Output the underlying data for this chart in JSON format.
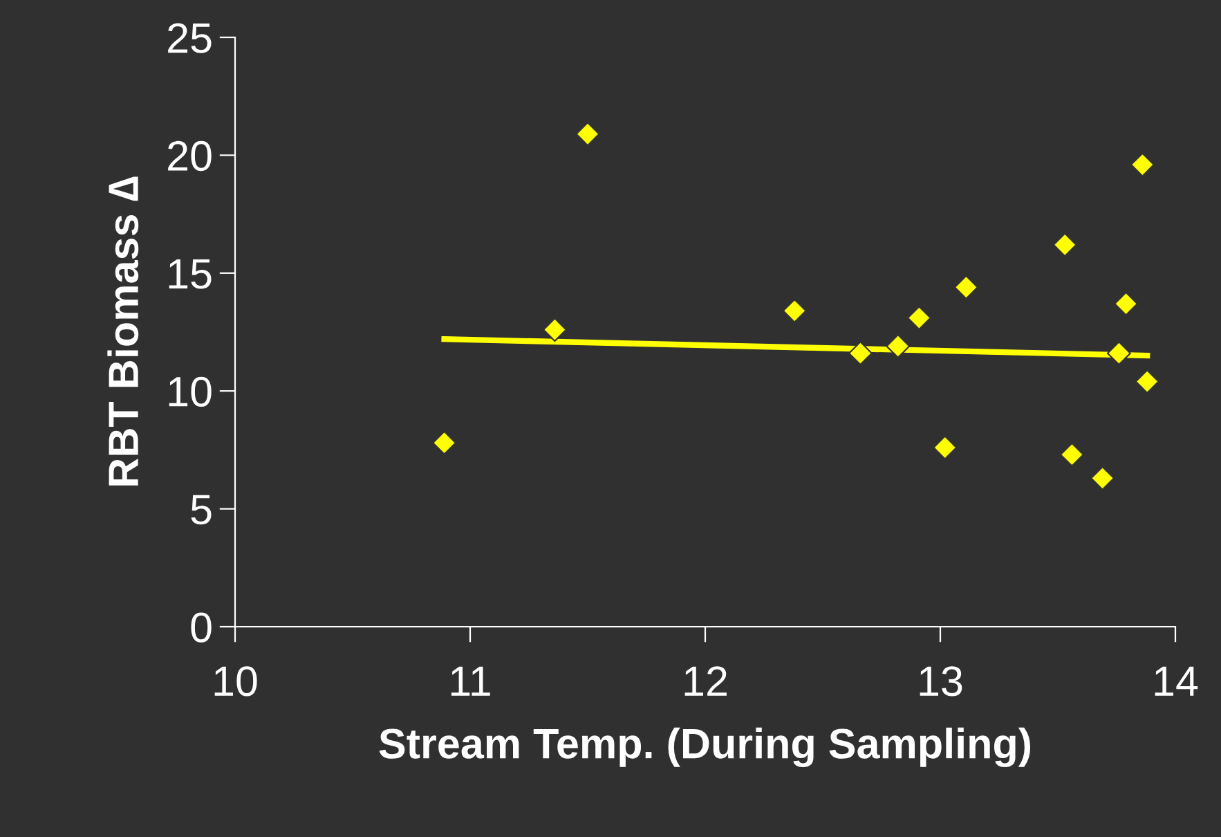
{
  "chart_data": {
    "type": "scatter",
    "xlabel": "Stream Temp. (During Sampling)",
    "ylabel": "RBT Biomass ∆",
    "xlim": [
      10,
      14
    ],
    "xticks": [
      10,
      11,
      12,
      13,
      14
    ],
    "ylim": [
      0,
      25
    ],
    "yticks": [
      0,
      5,
      10,
      15,
      20,
      25
    ],
    "grid": false,
    "series": [
      {
        "color": "#ffff00",
        "marker": "diamond",
        "x": [
          10.89,
          11.36,
          11.5,
          12.38,
          12.66,
          12.82,
          12.91,
          13.02,
          13.11,
          13.53,
          13.56,
          13.69,
          13.76,
          13.79,
          13.86,
          13.88
        ],
        "values": [
          7.8,
          12.6,
          20.9,
          13.4,
          11.6,
          11.9,
          13.1,
          7.6,
          14.4,
          16.2,
          7.3,
          6.3,
          11.6,
          13.7,
          19.6,
          10.4
        ]
      },
      {
        "type": "line",
        "color": "#ffff00",
        "x": [
          10.89,
          13.88
        ],
        "values": [
          12.2,
          11.5
        ]
      }
    ]
  }
}
